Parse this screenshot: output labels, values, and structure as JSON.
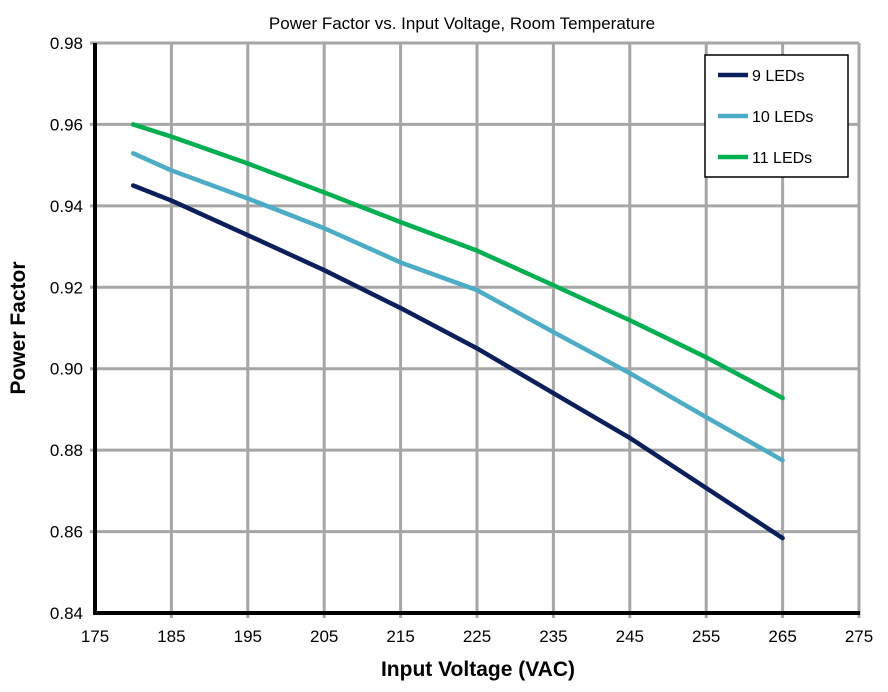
{
  "chart_data": {
    "type": "line",
    "title": "Power Factor vs. Input Voltage, Room Temperature",
    "xlabel": "Input Voltage (VAC)",
    "ylabel": "Power Factor",
    "xlim": [
      175,
      275
    ],
    "ylim": [
      0.84,
      0.98
    ],
    "xticks": [
      175,
      185,
      195,
      205,
      215,
      225,
      235,
      245,
      255,
      265,
      275
    ],
    "yticks": [
      "0.84",
      "0.86",
      "0.88",
      "0.90",
      "0.92",
      "0.94",
      "0.96",
      "0.98"
    ],
    "grid": true,
    "legend_position": "top-right",
    "x": [
      180,
      185,
      195,
      205,
      215,
      225,
      235,
      245,
      255,
      265
    ],
    "series": [
      {
        "name": "9 LEDs",
        "color": "#0b1f5c",
        "values": [
          0.945,
          0.9413,
          0.9328,
          0.9242,
          0.9149,
          0.905,
          0.894,
          0.883,
          0.8707,
          0.8584
        ]
      },
      {
        "name": "10 LEDs",
        "color": "#4bacc6",
        "values": [
          0.9529,
          0.9487,
          0.9418,
          0.9345,
          0.9261,
          0.9193,
          0.909,
          0.8989,
          0.8881,
          0.8775
        ]
      },
      {
        "name": "11 LEDs",
        "color": "#00b050",
        "values": [
          0.96,
          0.957,
          0.9504,
          0.9433,
          0.936,
          0.929,
          0.9205,
          0.9119,
          0.9028,
          0.8928
        ]
      }
    ]
  }
}
